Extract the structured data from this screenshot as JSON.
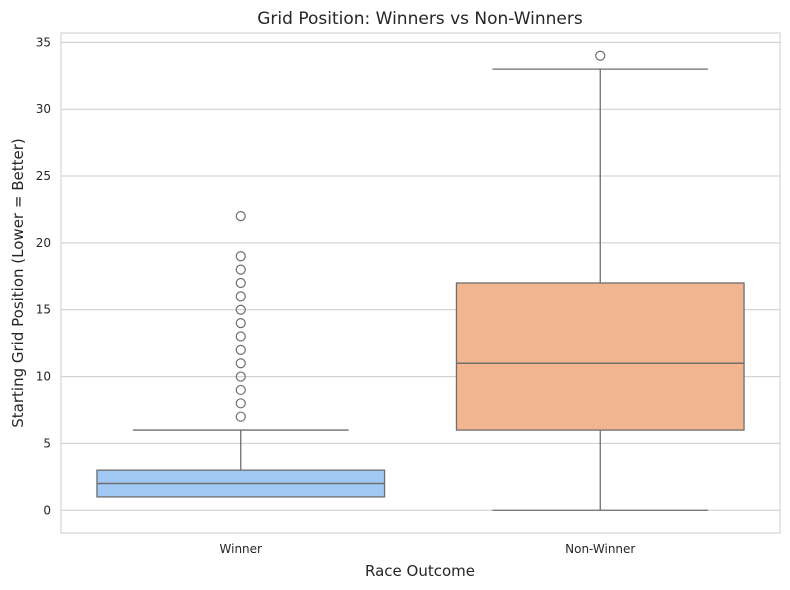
{
  "chart_data": {
    "type": "box",
    "title": "Grid Position: Winners vs Non-Winners",
    "xlabel": "Race Outcome",
    "ylabel": "Starting Grid Position (Lower = Better)",
    "ylim": [
      -1.7,
      35.7
    ],
    "yticks": [
      0,
      5,
      10,
      15,
      20,
      25,
      30,
      35
    ],
    "grid": true,
    "categories": [
      "Winner",
      "Non-Winner"
    ],
    "boxes": [
      {
        "category": "Winner",
        "color": "#a1c9f4",
        "whisker_low": 1,
        "q1": 1,
        "median": 2,
        "q3": 3,
        "whisker_high": 6,
        "outliers": [
          7,
          8,
          9,
          10,
          11,
          12,
          13,
          14,
          15,
          16,
          17,
          18,
          19,
          22
        ]
      },
      {
        "category": "Non-Winner",
        "color": "#f1b690",
        "whisker_low": 0,
        "q1": 6,
        "median": 11,
        "q3": 17,
        "whisker_high": 33,
        "outliers": [
          34
        ]
      }
    ]
  }
}
